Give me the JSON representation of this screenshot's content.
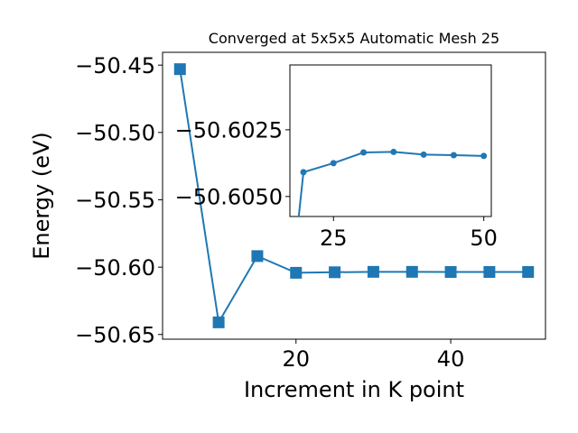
{
  "chart_data": [
    {
      "type": "line",
      "title": "Converged at 5x5x5 Automatic Mesh 25",
      "xlabel": "Increment in K point",
      "ylabel": "Energy (eV)",
      "xlim": [
        2.75,
        52.25
      ],
      "ylim": [
        -50.6535,
        -50.4405
      ],
      "xticks": [
        20,
        40
      ],
      "xtick_labels": [
        "20",
        "40"
      ],
      "yticks": [
        -50.45,
        -50.5,
        -50.55,
        -50.6,
        -50.65
      ],
      "ytick_labels": [
        "−50.45",
        "−50.50",
        "−50.55",
        "−50.60",
        "−50.65"
      ],
      "grid": false,
      "series": [
        {
          "marker": "square",
          "color": "#1f77b4",
          "x": [
            5,
            10,
            15,
            20,
            25,
            30,
            35,
            40,
            45,
            50
          ],
          "y": [
            -50.453,
            -50.641,
            -50.5918,
            -50.6042,
            -50.6038,
            -50.6035,
            -50.6035,
            -50.6036,
            -50.6036,
            -50.6036
          ]
        }
      ]
    },
    {
      "type": "line",
      "title": "",
      "xlim": [
        17.75,
        51.25
      ],
      "ylim": [
        -50.60575,
        -50.60007
      ],
      "xticks": [
        25,
        50
      ],
      "xtick_labels": [
        "25",
        "50"
      ],
      "yticks": [
        -50.605,
        -50.6025
      ],
      "ytick_labels": [
        "−50.6050",
        "−50.6025"
      ],
      "grid": false,
      "series": [
        {
          "marker": "circle",
          "color": "#1f77b4",
          "x": [
            19.2,
            20,
            25,
            30,
            35,
            40,
            45,
            50
          ],
          "y": [
            -50.6058,
            -50.60409,
            -50.60375,
            -50.60335,
            -50.60333,
            -50.60343,
            -50.60345,
            -50.60348
          ]
        }
      ]
    }
  ]
}
